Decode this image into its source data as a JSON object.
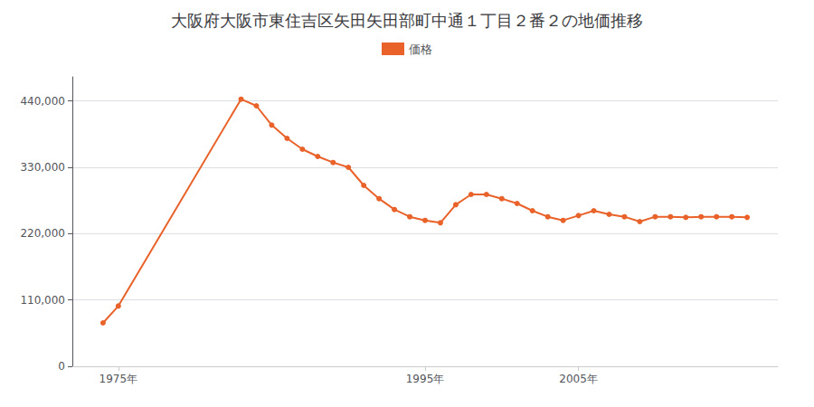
{
  "chart_data": {
    "type": "line",
    "title": "大阪府大阪市東住吉区矢田矢田部町中通１丁目２番２の地価推移",
    "x": [
      1974,
      1975,
      1983,
      1984,
      1985,
      1986,
      1987,
      1988,
      1989,
      1990,
      1991,
      1992,
      1993,
      1994,
      1995,
      1996,
      1997,
      1998,
      1999,
      2000,
      2001,
      2002,
      2003,
      2004,
      2005,
      2006,
      2007,
      2008,
      2009,
      2010,
      2011,
      2012,
      2013,
      2014,
      2015,
      2016
    ],
    "series": [
      {
        "name": "価格",
        "color": "#E8622A",
        "marker": "circle",
        "values": [
          72000,
          100000,
          443000,
          432000,
          400000,
          378000,
          360000,
          348000,
          338000,
          330000,
          300000,
          278000,
          260000,
          248000,
          242000,
          238000,
          268000,
          285000,
          285000,
          278000,
          270000,
          258000,
          248000,
          242000,
          250000,
          258000,
          252000,
          248000,
          240000,
          248000,
          248000,
          247000,
          248000,
          248000,
          248000,
          247000
        ]
      }
    ],
    "xlim": [
      1972,
      2018
    ],
    "xticks": [
      {
        "value": 1975,
        "label": "1975年"
      },
      {
        "value": 1995,
        "label": "1995年"
      },
      {
        "value": 2005,
        "label": "2005年"
      }
    ],
    "ylim": [
      0,
      480000
    ],
    "yticks": [
      0,
      {
        "value": 110000,
        "label": "110,000"
      },
      {
        "value": 220000,
        "label": "220,000"
      },
      {
        "value": 330000,
        "label": "330,000"
      },
      {
        "value": 440000,
        "label": "440,000"
      }
    ],
    "grid": true,
    "legend": "top"
  }
}
